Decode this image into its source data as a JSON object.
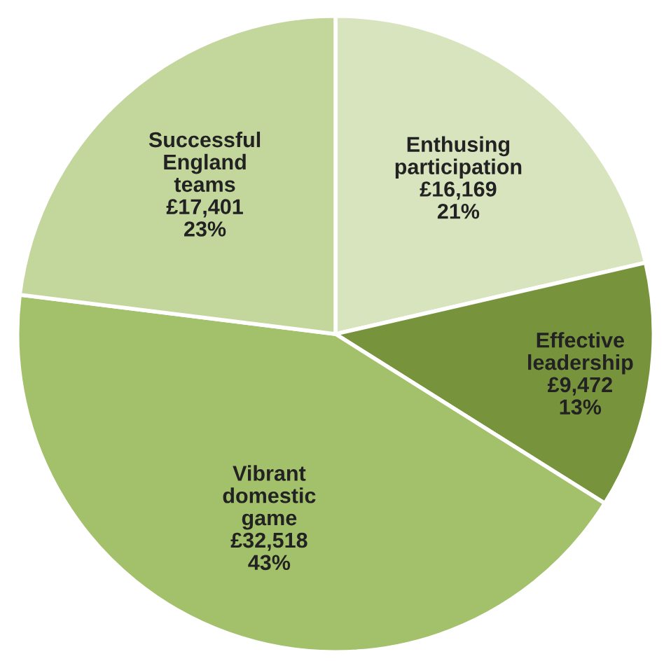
{
  "chart_data": {
    "type": "pie",
    "categories": [
      "Enthusing participation",
      "Effective leadership",
      "Vibrant domestic game",
      "Successful England teams"
    ],
    "values": [
      16169,
      9472,
      32518,
      17401
    ],
    "value_labels": [
      "£16,169\n21%",
      "£9,472\n13%",
      "£32,518\n43%",
      "£17,401\n23%"
    ],
    "colors": [
      "#d7e4bd",
      "#77933c",
      "#a3c06a",
      "#c3d69b"
    ],
    "legend": false
  }
}
